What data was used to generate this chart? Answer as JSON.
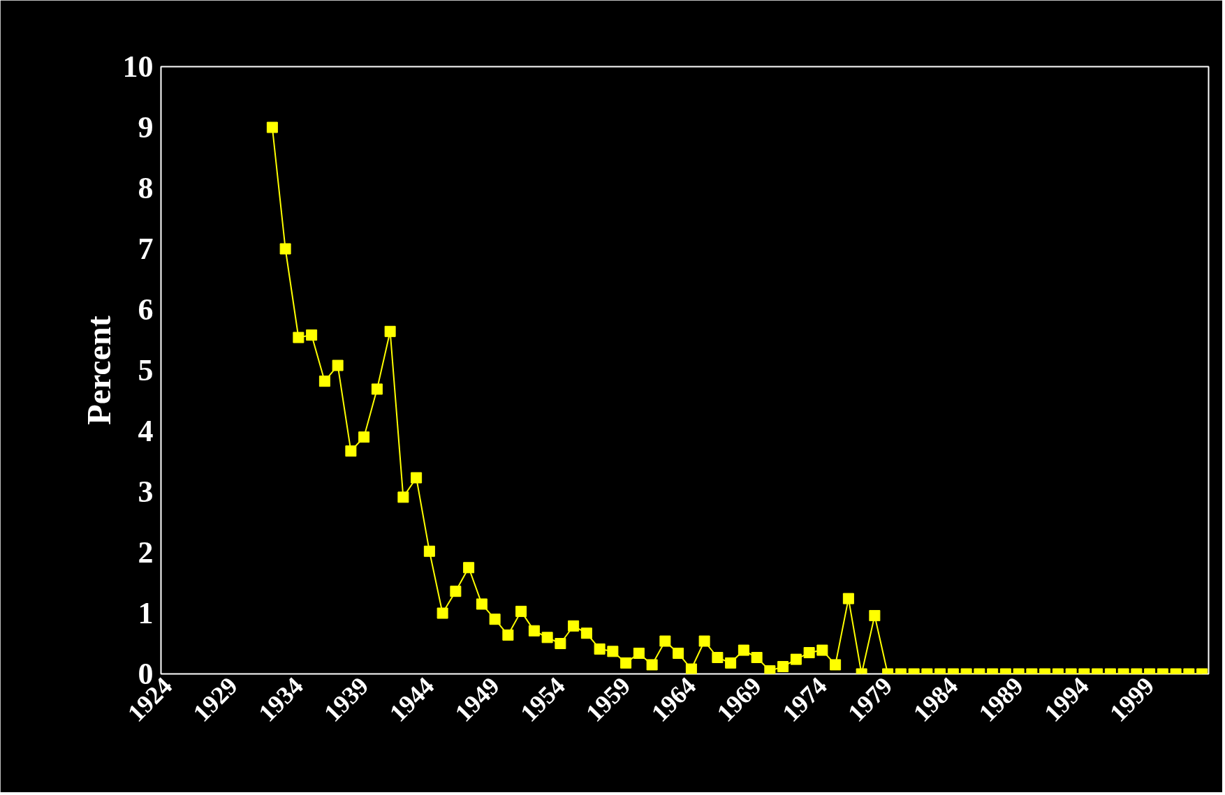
{
  "chart_data": {
    "type": "line",
    "ylabel": "Percent",
    "x": [
      1932,
      1933,
      1934,
      1935,
      1936,
      1937,
      1938,
      1939,
      1940,
      1941,
      1942,
      1943,
      1944,
      1945,
      1946,
      1947,
      1948,
      1949,
      1950,
      1951,
      1952,
      1953,
      1954,
      1955,
      1956,
      1957,
      1958,
      1959,
      1960,
      1961,
      1962,
      1963,
      1964,
      1965,
      1966,
      1967,
      1968,
      1969,
      1970,
      1971,
      1972,
      1973,
      1974,
      1975,
      1976,
      1977,
      1978,
      1979,
      1980,
      1981,
      1982,
      1983,
      1984,
      1985,
      1986,
      1987,
      1988,
      1989,
      1990,
      1991,
      1992,
      1993,
      1994,
      1995,
      1996,
      1997,
      1998,
      1999,
      2000,
      2001,
      2002,
      2003
    ],
    "series": [
      {
        "color": "#ffff00",
        "values": [
          9.0,
          7.0,
          5.54,
          5.58,
          4.82,
          5.08,
          3.67,
          3.9,
          4.69,
          5.64,
          2.91,
          3.23,
          2.02,
          1.0,
          1.36,
          1.75,
          1.15,
          0.9,
          0.64,
          1.03,
          0.71,
          0.6,
          0.5,
          0.79,
          0.67,
          0.41,
          0.37,
          0.18,
          0.34,
          0.15,
          0.54,
          0.34,
          0.08,
          0.54,
          0.27,
          0.18,
          0.39,
          0.27,
          0.05,
          0.12,
          0.24,
          0.35,
          0.39,
          0.15,
          1.24,
          0,
          0.96,
          0,
          0,
          0,
          0,
          0,
          0,
          0,
          0,
          0,
          0,
          0,
          0,
          0,
          0,
          0,
          0,
          0,
          0,
          0,
          0,
          0,
          0,
          0,
          0,
          0
        ]
      }
    ],
    "xlim": [
      1923.5,
      2003.5
    ],
    "xticks": [
      1924,
      1929,
      1934,
      1939,
      1944,
      1949,
      1954,
      1959,
      1964,
      1969,
      1974,
      1979,
      1984,
      1989,
      1994,
      1999
    ],
    "ylim": [
      0,
      10
    ],
    "yticks": [
      0,
      1,
      2,
      3,
      4,
      5,
      6,
      7,
      8,
      9,
      10
    ],
    "grid": false,
    "marker": "square",
    "line_style": "solid"
  }
}
